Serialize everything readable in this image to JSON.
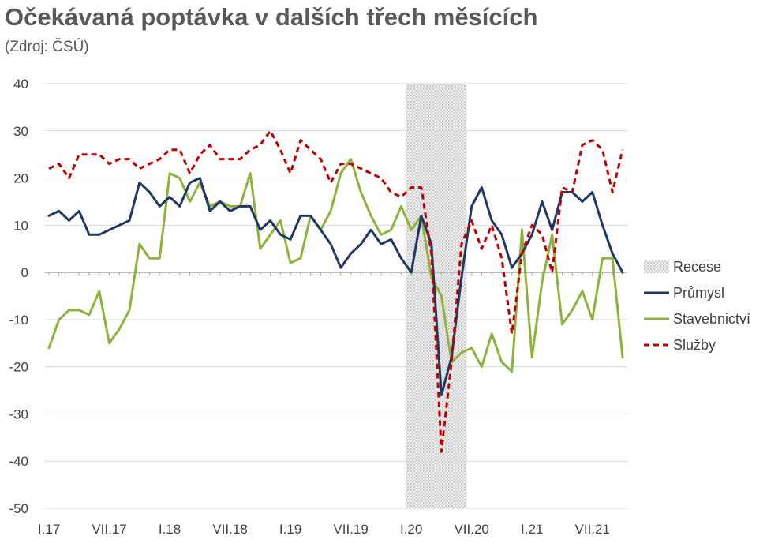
{
  "colors": {
    "prumysl": "#1f3864",
    "stavebnictvi": "#8db33a",
    "sluzby": "#c00000",
    "recese": "#d9d9d9",
    "grid": "#d9d9d9",
    "axis": "#a6a6a6"
  },
  "chart_data": {
    "type": "line",
    "title": "Očekávaná poptávka v dalších třech měsících",
    "subtitle": "(Zdroj: ČSÚ)",
    "xlabel": "",
    "ylabel": "",
    "ylim": [
      -50,
      40
    ],
    "yticks": [
      "40",
      "30",
      "20",
      "10",
      "0",
      "-10",
      "-20",
      "-30",
      "-40",
      "-50"
    ],
    "ytick_values": [
      40,
      30,
      20,
      10,
      0,
      -10,
      -20,
      -30,
      -40,
      -50
    ],
    "xticks": [
      {
        "label": "I.17",
        "index": 0
      },
      {
        "label": "VII.17",
        "index": 6
      },
      {
        "label": "I.18",
        "index": 12
      },
      {
        "label": "VII.18",
        "index": 18
      },
      {
        "label": "I.19",
        "index": 24
      },
      {
        "label": "VII.19",
        "index": 30
      },
      {
        "label": "I.20",
        "index": 36
      },
      {
        "label": "VII.20",
        "index": 42
      },
      {
        "label": "I.21",
        "index": 48
      },
      {
        "label": "VII.21",
        "index": 54
      }
    ],
    "n_points": 58,
    "grid": true,
    "legend": "right",
    "recese": {
      "label": "Recese",
      "start_index": 35.5,
      "end_index": 41.5
    },
    "series": [
      {
        "key": "prumysl",
        "name": "Průmysl",
        "style": "solid",
        "values": [
          12,
          13,
          11,
          13,
          8,
          8,
          9,
          10,
          11,
          19,
          17,
          14,
          16,
          14,
          19,
          20,
          13,
          15,
          13,
          14,
          14,
          9,
          11,
          8,
          7,
          12,
          12,
          9,
          6,
          1,
          4,
          6,
          9,
          6,
          7,
          3,
          0,
          12,
          6,
          -26,
          -18,
          -1,
          14,
          18,
          11,
          8,
          1,
          4,
          8,
          15,
          9,
          17,
          17,
          15,
          17,
          10,
          4,
          0
        ]
      },
      {
        "key": "stavebnictvi",
        "name": "Stavebnictví",
        "style": "solid",
        "values": [
          -16,
          -10,
          -8,
          -8,
          -9,
          -4,
          -15,
          -12,
          -8,
          6,
          3,
          3,
          21,
          20,
          15,
          19,
          14,
          15,
          14,
          14,
          21,
          5,
          8,
          11,
          2,
          3,
          12,
          9,
          13,
          21,
          24,
          17,
          12,
          8,
          9,
          14,
          9,
          12,
          -1,
          -5,
          -19,
          -17,
          -16,
          -20,
          -13,
          -19,
          -21,
          9,
          -18,
          -2,
          8,
          -11,
          -8,
          -4,
          -10,
          3,
          3,
          -18
        ]
      },
      {
        "key": "sluzby",
        "name": "Služby",
        "style": "dashed",
        "values": [
          22,
          23,
          20,
          25,
          25,
          25,
          23,
          24,
          24,
          22,
          23,
          24,
          26,
          26,
          21,
          25,
          27,
          24,
          24,
          24,
          26,
          27,
          30,
          26,
          21,
          28,
          26,
          24,
          19,
          23,
          23,
          22,
          21,
          20,
          17,
          16,
          18,
          18,
          4,
          -38,
          -19,
          6,
          11,
          5,
          10,
          3,
          -13,
          4,
          10,
          8,
          0,
          18,
          17,
          27,
          28,
          26,
          17,
          26
        ]
      }
    ]
  }
}
